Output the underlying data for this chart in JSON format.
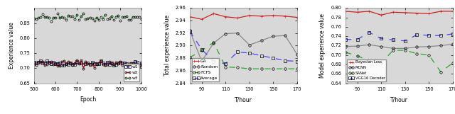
{
  "fig_bg": "#ffffff",
  "axes_bg": "#d8d8d8",
  "plot1": {
    "xlabel": "Epoch",
    "ylabel": "Experience value",
    "xlim": [
      500,
      1000
    ],
    "ylim": [
      0.65,
      0.9
    ],
    "yticks": [
      0.65,
      0.7,
      0.75,
      0.8,
      0.85
    ],
    "xticks": [
      500,
      600,
      700,
      800,
      900,
      1000
    ],
    "series": {
      "w1": {
        "color": "#4444ff",
        "marker": "s",
        "linestyle": "-"
      },
      "w2": {
        "color": "#cc2222",
        "marker": "o",
        "linestyle": "-"
      },
      "w3": {
        "color": "#22aa22",
        "marker": "o",
        "linestyle": "--"
      }
    },
    "legend_loc": "lower right"
  },
  "plot2": {
    "xlabel": "T/hour",
    "ylabel": "Total experience value",
    "xlim": [
      80,
      170
    ],
    "ylim": [
      2.84,
      2.96
    ],
    "yticks": [
      2.84,
      2.86,
      2.88,
      2.9,
      2.92,
      2.94,
      2.96
    ],
    "xticks": [
      90,
      110,
      130,
      150,
      170
    ],
    "series": {
      "GA": {
        "color": "#cc2222",
        "marker": "+",
        "linestyle": "-"
      },
      "Random": {
        "color": "#888888",
        "marker": "o",
        "linestyle": "-"
      },
      "FCFS": {
        "color": "#22aa22",
        "marker": "o",
        "linestyle": "--"
      },
      "Average": {
        "color": "#4444ff",
        "marker": "s",
        "linestyle": "--"
      }
    },
    "legend_loc": "lower left"
  },
  "plot3": {
    "xlabel": "T/hour",
    "ylabel": "Model experience value",
    "xlim": [
      80,
      170
    ],
    "ylim": [
      0.64,
      0.8
    ],
    "yticks": [
      0.64,
      0.66,
      0.68,
      0.7,
      0.72,
      0.74,
      0.76,
      0.78,
      0.8
    ],
    "xticks": [
      90,
      110,
      130,
      150,
      170
    ],
    "series": {
      "Bayesian Loss": {
        "color": "#cc2222",
        "marker": "+",
        "linestyle": "-"
      },
      "MCNN": {
        "color": "#888888",
        "marker": "o",
        "linestyle": "-"
      },
      "SANet": {
        "color": "#22aa22",
        "marker": "o",
        "linestyle": "--"
      },
      "VGG16 Decoder": {
        "color": "#4444ff",
        "marker": "s",
        "linestyle": "--"
      }
    },
    "legend_loc": "lower left"
  }
}
